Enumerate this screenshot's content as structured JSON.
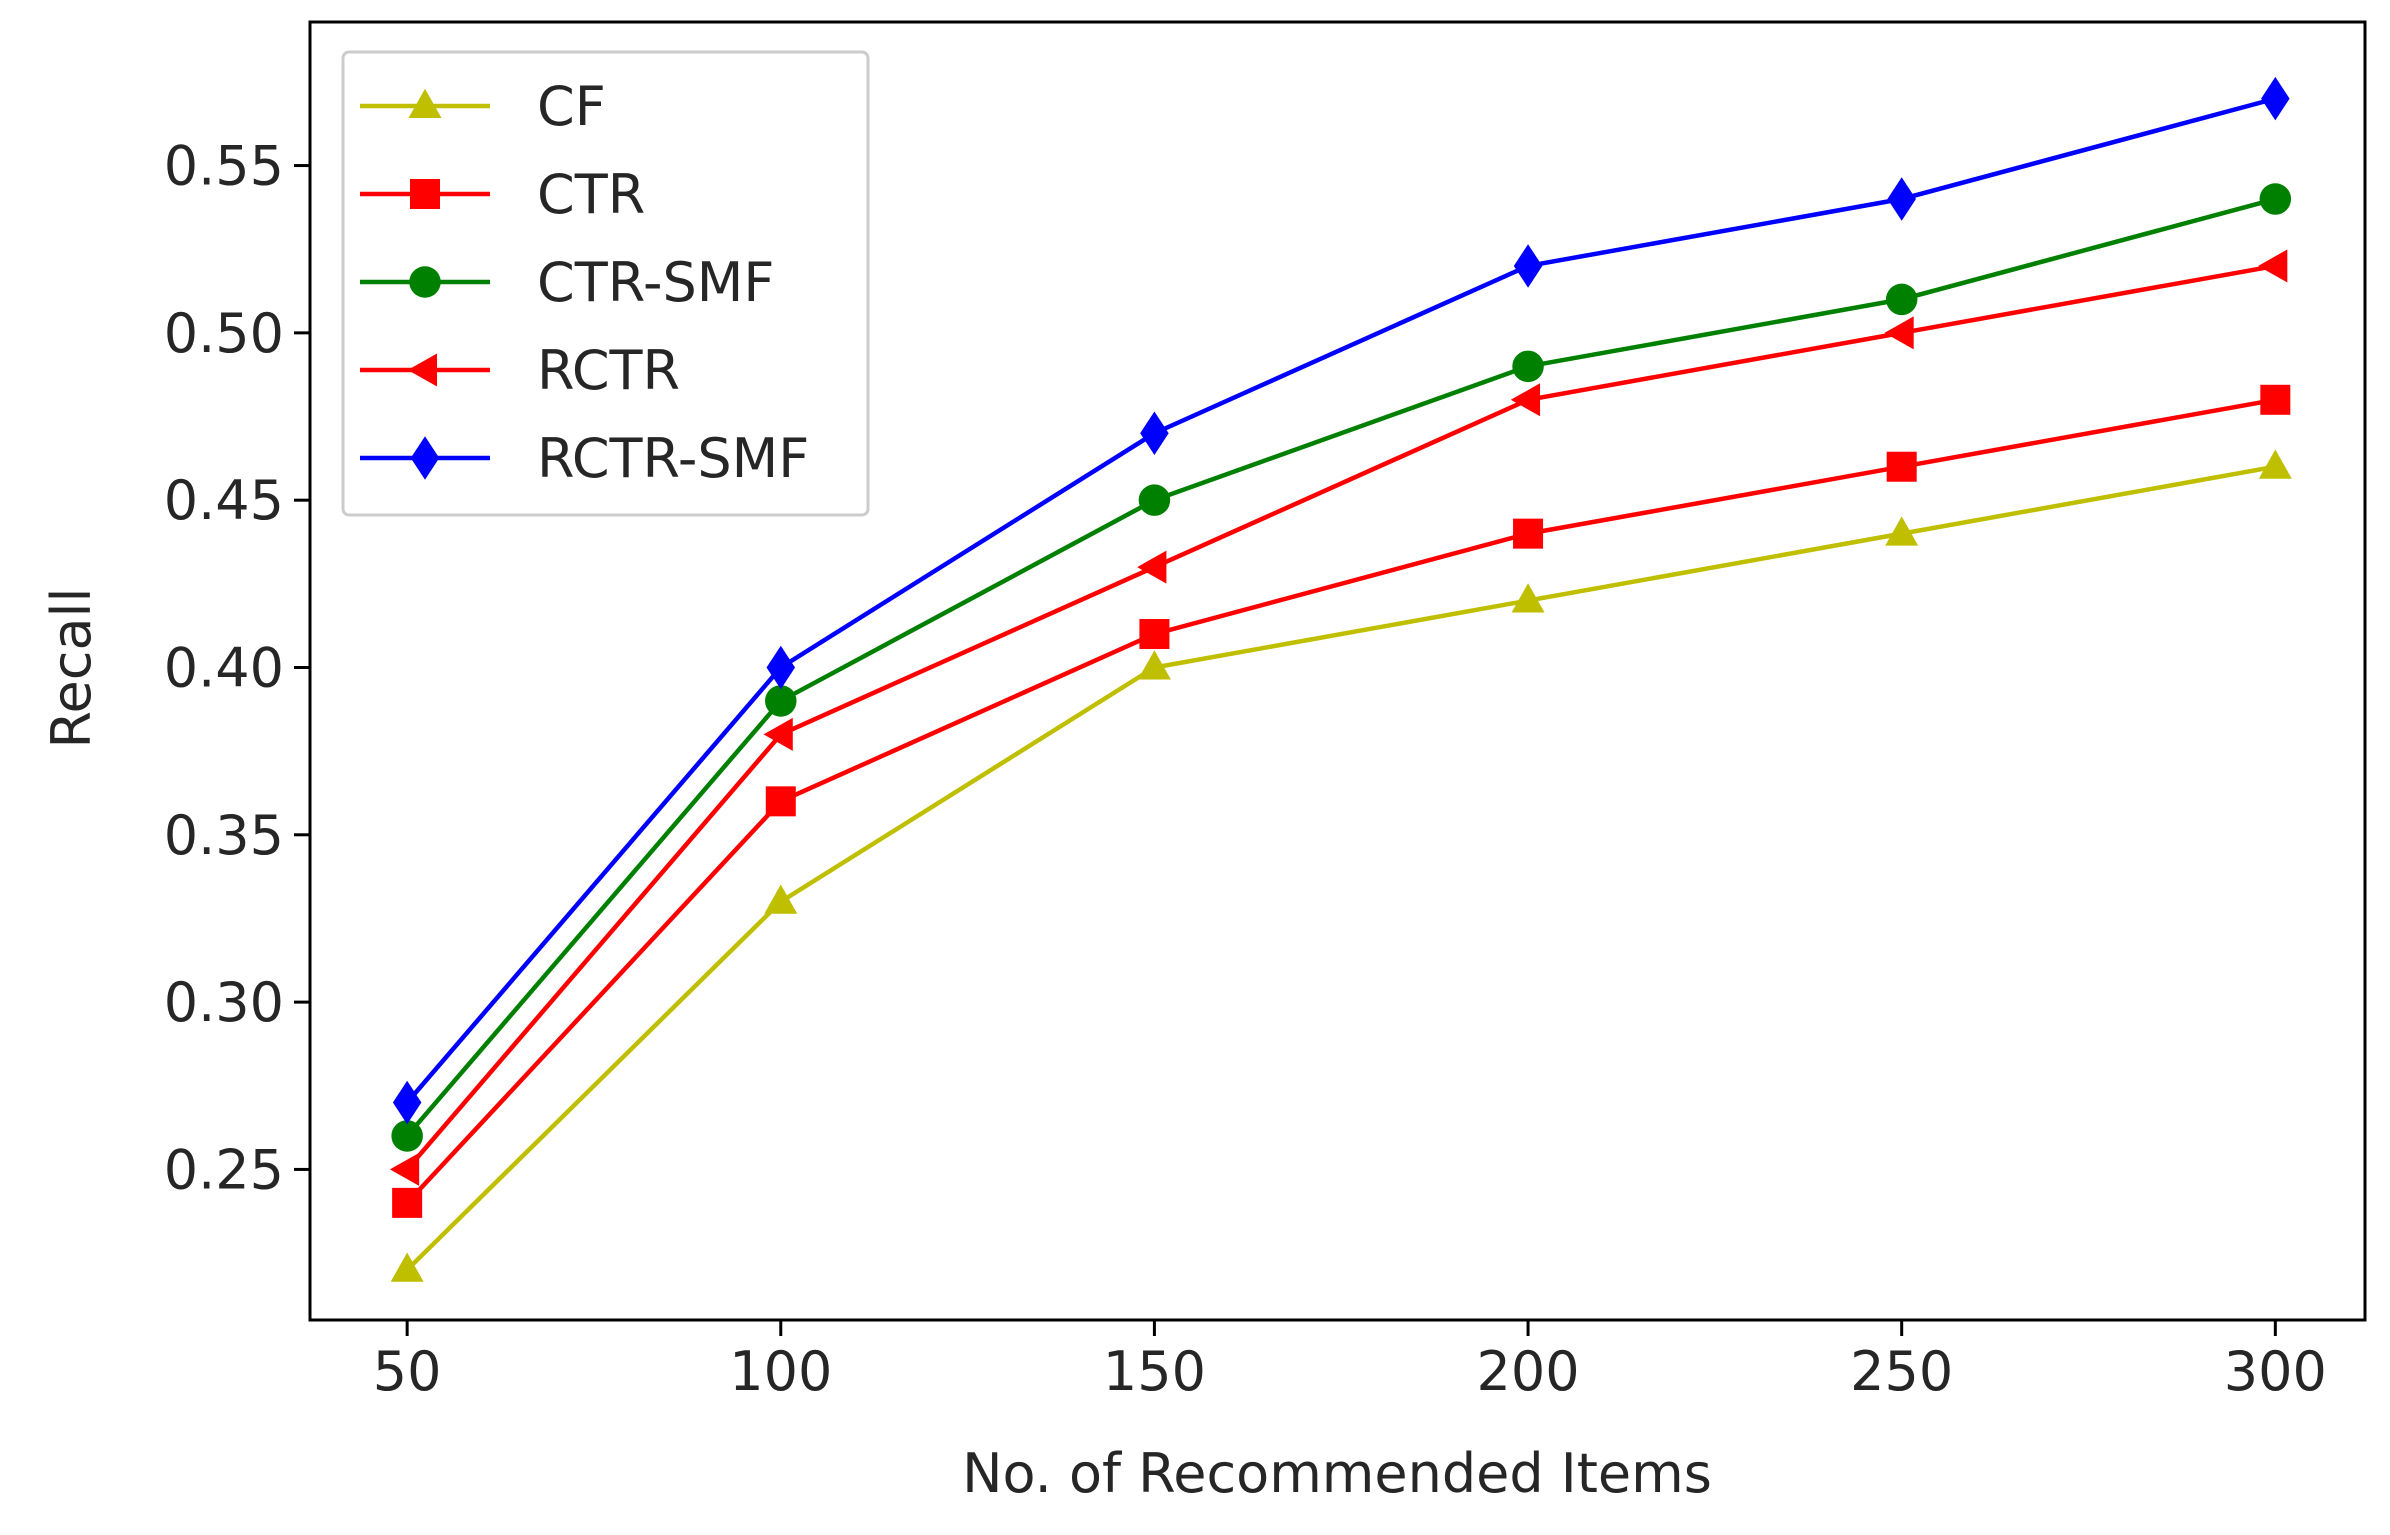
{
  "chart_data": {
    "type": "line",
    "title": "",
    "xlabel": "No. of Recommended Items",
    "ylabel": "Recall",
    "x": [
      50,
      100,
      150,
      200,
      250,
      300
    ],
    "x_ticks": [
      "50",
      "100",
      "150",
      "200",
      "250",
      "300"
    ],
    "y_ticks": [
      "0.25",
      "0.30",
      "0.35",
      "0.40",
      "0.45",
      "0.50",
      "0.55"
    ],
    "xlim": [
      37,
      312
    ],
    "ylim": [
      0.205,
      0.5929
    ],
    "grid": false,
    "legend_position": "top-left",
    "series": [
      {
        "name": "CF",
        "color": "#bfbf00",
        "marker": "triangle-up",
        "values": [
          0.22,
          0.33,
          0.4,
          0.42,
          0.44,
          0.46
        ]
      },
      {
        "name": "CTR",
        "color": "#ff0000",
        "marker": "square",
        "values": [
          0.24,
          0.36,
          0.41,
          0.44,
          0.46,
          0.48
        ]
      },
      {
        "name": "CTR-SMF",
        "color": "#008000",
        "marker": "circle",
        "values": [
          0.26,
          0.39,
          0.45,
          0.49,
          0.51,
          0.54
        ]
      },
      {
        "name": "RCTR",
        "color": "#ff0000",
        "marker": "triangle-left",
        "values": [
          0.25,
          0.38,
          0.43,
          0.48,
          0.5,
          0.52
        ]
      },
      {
        "name": "RCTR-SMF",
        "color": "#0000ff",
        "marker": "diamond",
        "values": [
          0.27,
          0.4,
          0.47,
          0.52,
          0.54,
          0.57
        ]
      }
    ]
  }
}
